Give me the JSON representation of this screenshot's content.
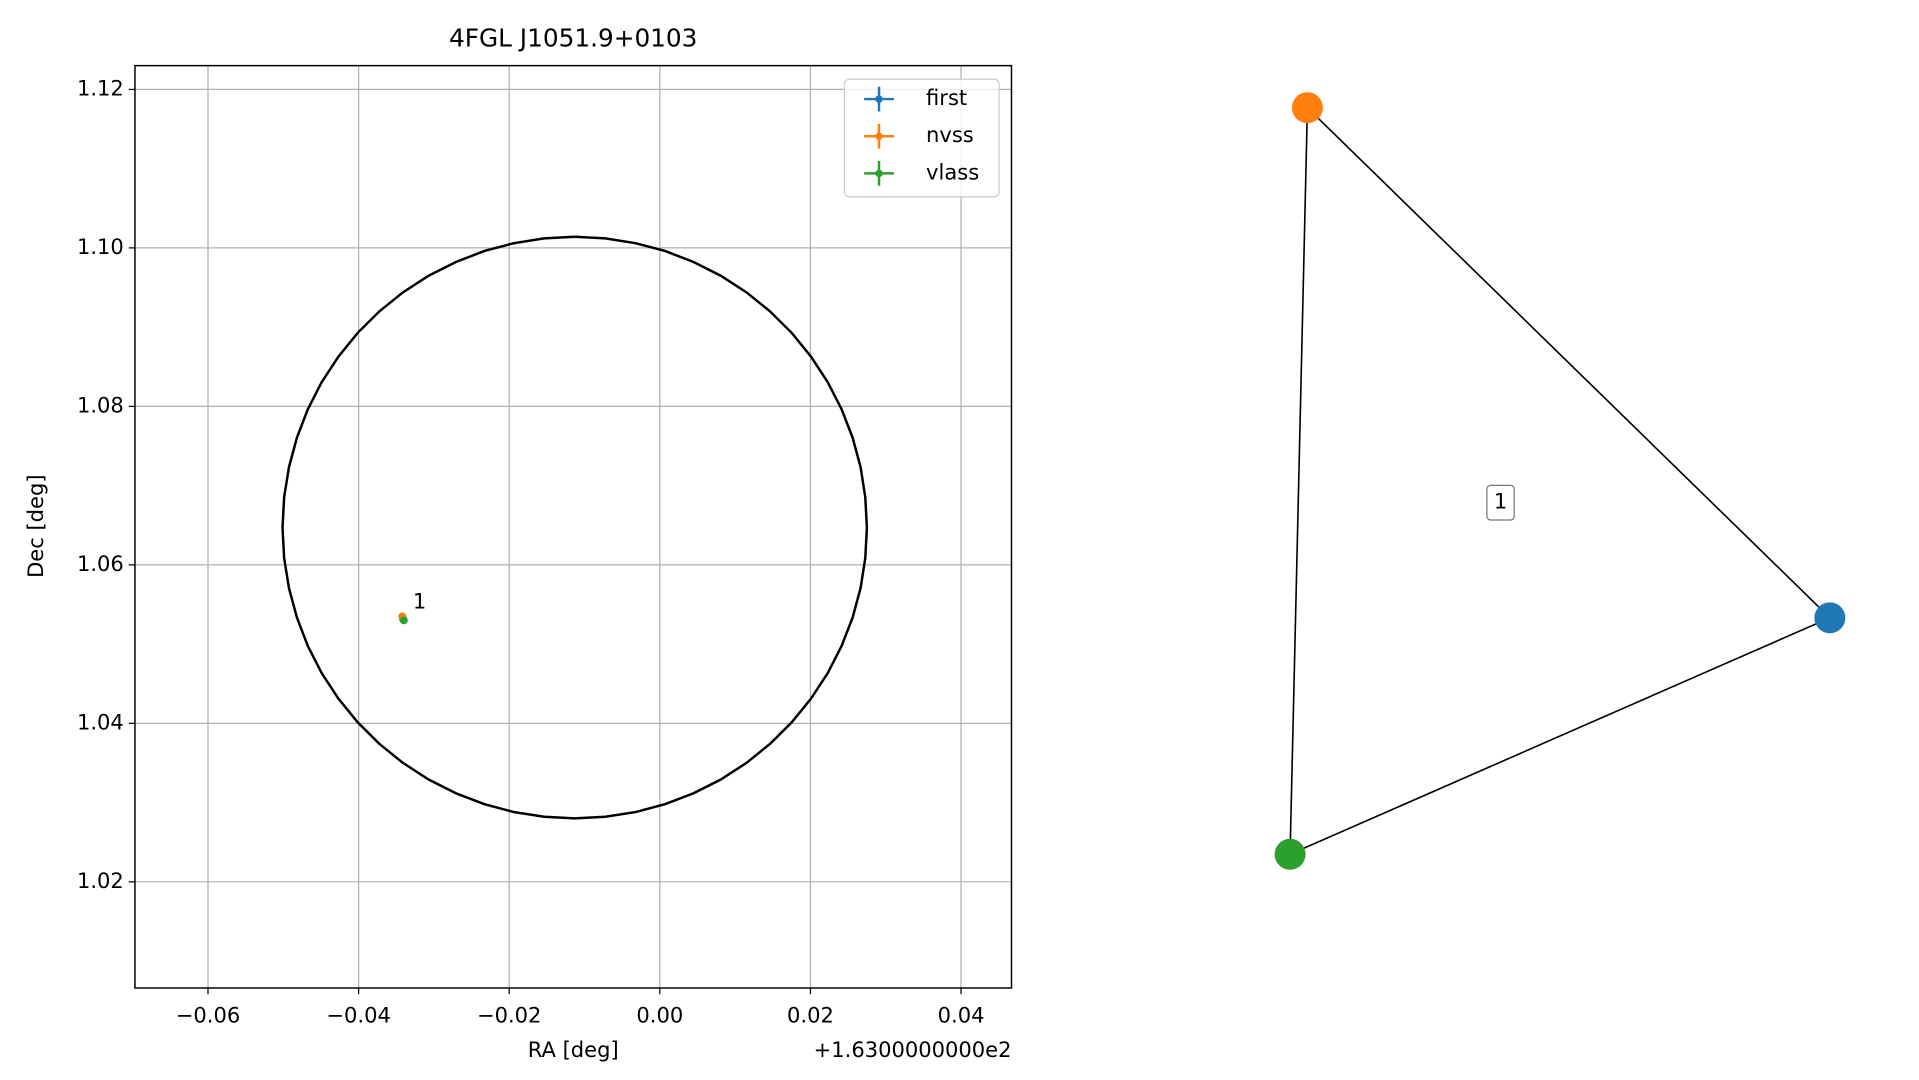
{
  "chart_data": [
    {
      "type": "scatter",
      "title": "4FGL J1051.9+0103",
      "xlabel": "RA [deg]",
      "ylabel": "Dec [deg]",
      "x_offset_label": "+1.6300000000e2",
      "xlim": [
        -0.0697,
        0.0467
      ],
      "ylim": [
        1.0066,
        1.123
      ],
      "xticks": [
        {
          "value": -0.06,
          "label": "−0.06"
        },
        {
          "value": -0.04,
          "label": "−0.04"
        },
        {
          "value": -0.02,
          "label": "−0.02"
        },
        {
          "value": 0,
          "label": "0.00"
        },
        {
          "value": 0.02,
          "label": "0.02"
        },
        {
          "value": 0.04,
          "label": "0.04"
        }
      ],
      "yticks": [
        1.02,
        1.04,
        1.06,
        1.08,
        {
          "value": 1.1,
          "label": "1.10"
        },
        1.12
      ],
      "grid": true,
      "legend": "upper right",
      "series": [
        {
          "name": "first",
          "color": "#1f77b4",
          "x": [
            -0.0341
          ],
          "y": [
            1.0532
          ]
        },
        {
          "name": "nvss",
          "color": "#ff7f0e",
          "x": [
            -0.0342
          ],
          "y": [
            1.0535
          ]
        },
        {
          "name": "vlass",
          "color": "#2ca02c",
          "x": [
            -0.034
          ],
          "y": [
            1.053
          ]
        }
      ],
      "annotation": "1",
      "ellipse": {
        "cx": -0.0113,
        "cy": 1.0647,
        "rx": 0.0388,
        "ry": 0.0367,
        "color": "#000000"
      }
    },
    {
      "type": "network",
      "label": "1",
      "nodes": [
        {
          "color": "#1f77b4"
        },
        {
          "color": "#ff7f0e"
        },
        {
          "color": "#2ca02c"
        }
      ],
      "edges": [
        [
          0,
          1
        ],
        [
          1,
          2
        ],
        [
          2,
          0
        ]
      ]
    }
  ]
}
